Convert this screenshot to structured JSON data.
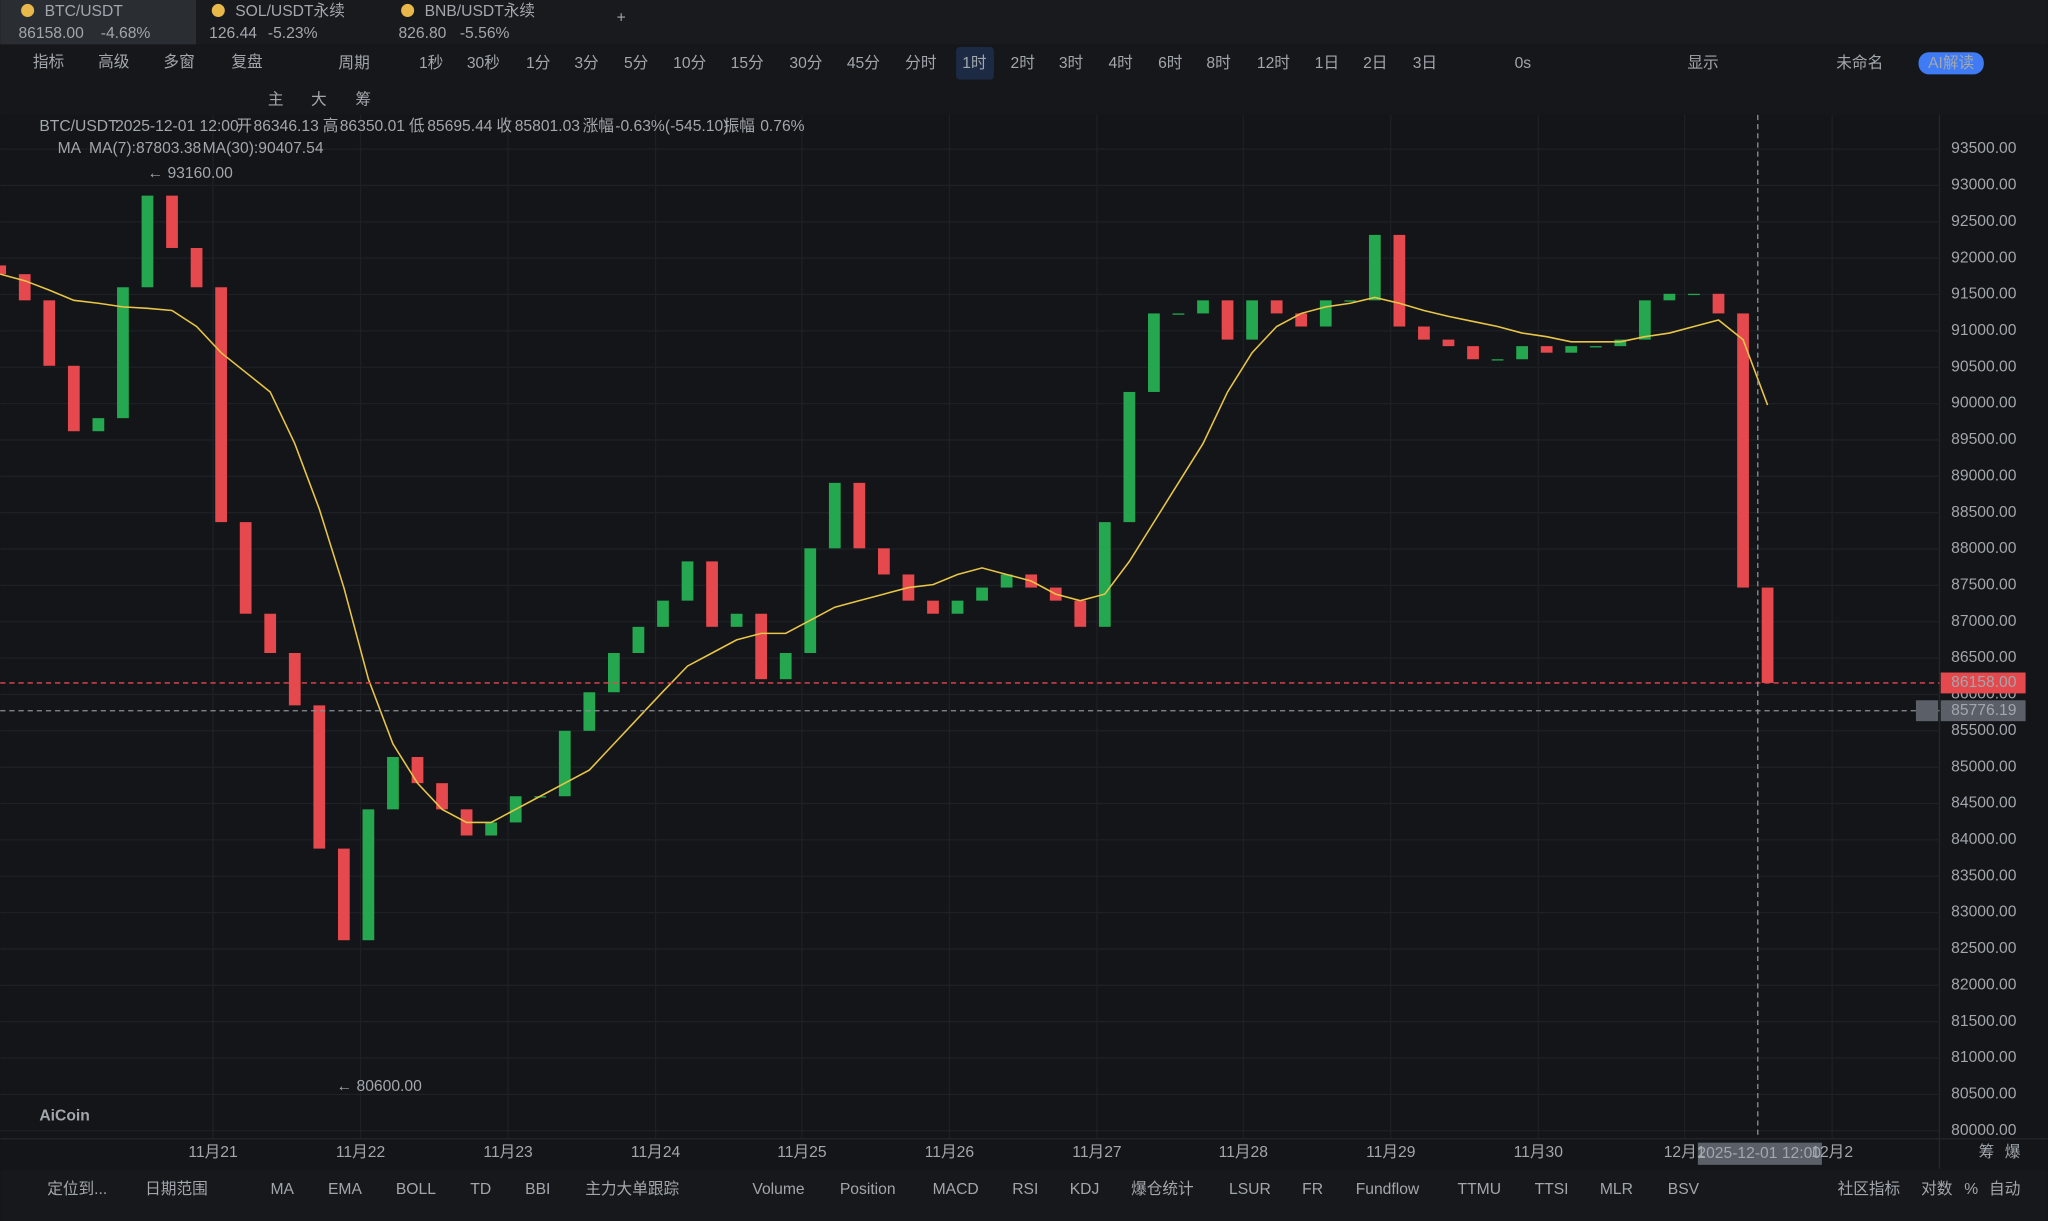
{
  "tabs": [
    {
      "symbol": "BTC/USDT",
      "price": "86158.00",
      "change": "-4.68%"
    },
    {
      "symbol": "SOL/USDT永续",
      "price": "126.44",
      "change": "-5.23%"
    },
    {
      "symbol": "BNB/USDT永续",
      "price": "826.80",
      "change": "-5.56%"
    }
  ],
  "toolbar": {
    "items": [
      "指标",
      "高级",
      "多窗",
      "复盘"
    ],
    "period_label": "周期",
    "periods": [
      "1秒",
      "30秒",
      "1分",
      "3分",
      "5分",
      "10分",
      "15分",
      "30分",
      "45分",
      "分时",
      "1时",
      "2时",
      "3时",
      "4时",
      "6时",
      "8时",
      "12时",
      "1日",
      "2日",
      "3日"
    ],
    "right": [
      "0s",
      "显示",
      "未命名"
    ],
    "ai": "AI解读"
  },
  "drawing_tools": [
    "主",
    "大",
    "筹"
  ],
  "info": {
    "items": [
      "BTC/USDT",
      "2025-12-01 12:00",
      "开",
      "86346.13",
      "高",
      "86350.01",
      "低",
      "85695.44",
      "收",
      "85801.03",
      "涨幅",
      "-0.63%(-545.10)",
      "振幅",
      "0.76%"
    ],
    "ma_label": "MA",
    "ma7": "MA(7):87803.38",
    "ma30": "MA(30):90407.54"
  },
  "watermark": "AiCoin",
  "chart_data": {
    "type": "candlestick",
    "open": [
      91900,
      91780,
      91420,
      90520,
      89620,
      89800,
      91600,
      92860,
      92140,
      91600,
      88370,
      87110,
      86570,
      85850,
      83880,
      82620,
      84420,
      85140,
      84780,
      84420,
      84060,
      84240,
      84600,
      84600,
      85500,
      86030,
      86570,
      86930,
      87290,
      87830,
      86930,
      87110,
      86210,
      86570,
      88010,
      88910,
      88010,
      87650,
      87290,
      87110,
      87290,
      87470,
      87650,
      87470,
      87290,
      86930,
      88370,
      90160,
      91240,
      91240,
      91420,
      90880,
      91420,
      91240,
      91060,
      91420,
      91420,
      92320,
      91060,
      90880,
      90790,
      90610,
      90610,
      90790,
      90700,
      90790,
      90790,
      90880,
      91420,
      91510,
      91510,
      91240,
      87470
    ],
    "close": [
      91780,
      91420,
      90520,
      89620,
      89800,
      91600,
      92860,
      92140,
      91600,
      88370,
      87110,
      86570,
      85850,
      83880,
      82620,
      84420,
      85140,
      84780,
      84420,
      84060,
      84240,
      84600,
      84600,
      85500,
      86030,
      86570,
      86930,
      87290,
      87830,
      86930,
      87110,
      86210,
      86570,
      88010,
      88910,
      88010,
      87650,
      87290,
      87110,
      87290,
      87470,
      87650,
      87470,
      87290,
      86930,
      88370,
      90160,
      91240,
      91240,
      91420,
      90880,
      91420,
      91240,
      91060,
      91420,
      91420,
      92320,
      91060,
      90880,
      90790,
      90610,
      90610,
      90790,
      90700,
      90790,
      90790,
      90880,
      91420,
      91510,
      91510,
      91240,
      87470,
      86158
    ],
    "ma30": [
      91780,
      91690,
      91560,
      91420,
      91380,
      91330,
      91310,
      91280,
      91060,
      90700,
      90430,
      90160,
      89450,
      88550,
      87470,
      86210,
      85320,
      84780,
      84420,
      84240,
      84240,
      84420,
      84600,
      84780,
      84960,
      85320,
      85680,
      86040,
      86390,
      86570,
      86750,
      86840,
      86840,
      87020,
      87200,
      87290,
      87380,
      87470,
      87510,
      87650,
      87740,
      87650,
      87560,
      87380,
      87290,
      87380,
      87830,
      88370,
      88910,
      89450,
      90160,
      90700,
      91060,
      91240,
      91330,
      91380,
      91460,
      91380,
      91280,
      91200,
      91130,
      91060,
      90970,
      90920,
      90850,
      90850,
      90850,
      90920,
      90970,
      91060,
      91150,
      90880,
      89980
    ],
    "up_color": "#25a750",
    "down_color": "#e5484d",
    "ma30_color": "#e8c547",
    "grid": true,
    "ylim": [
      79890,
      93970
    ],
    "yticks": [
      {
        "value": 80000,
        "label": "80000.00"
      },
      {
        "value": 80500,
        "label": "80500.00"
      },
      {
        "value": 81000,
        "label": "81000.00"
      },
      {
        "value": 81500,
        "label": "81500.00"
      },
      {
        "value": 82000,
        "label": "82000.00"
      },
      {
        "value": 82500,
        "label": "82500.00"
      },
      {
        "value": 83000,
        "label": "83000.00"
      },
      {
        "value": 83500,
        "label": "83500.00"
      },
      {
        "value": 84000,
        "label": "84000.00"
      },
      {
        "value": 84500,
        "label": "84500.00"
      },
      {
        "value": 85000,
        "label": "85000.00"
      },
      {
        "value": 85500,
        "label": "85500.00"
      },
      {
        "value": 86000,
        "label": "86000.00"
      },
      {
        "value": 86500,
        "label": "86500.00"
      },
      {
        "value": 87000,
        "label": "87000.00"
      },
      {
        "value": 87500,
        "label": "87500.00"
      },
      {
        "value": 88000,
        "label": "88000.00"
      },
      {
        "value": 88500,
        "label": "88500.00"
      },
      {
        "value": 89000,
        "label": "89000.00"
      },
      {
        "value": 89500,
        "label": "89500.00"
      },
      {
        "value": 90000,
        "label": "90000.00"
      },
      {
        "value": 90500,
        "label": "90500.00"
      },
      {
        "value": 91000,
        "label": "91000.00"
      },
      {
        "value": 91500,
        "label": "91500.00"
      },
      {
        "value": 92000,
        "label": "92000.00"
      },
      {
        "value": 92500,
        "label": "92500.00"
      },
      {
        "value": 93000,
        "label": "93000.00"
      },
      {
        "value": 93500,
        "label": "93500.00"
      }
    ],
    "xlim": [
      0,
      79
    ],
    "xticks": [
      {
        "value": 8.67,
        "label": "11月21"
      },
      {
        "value": 14.68,
        "label": "11月22"
      },
      {
        "value": 20.69,
        "label": "11月23"
      },
      {
        "value": 26.7,
        "label": "11月24"
      },
      {
        "value": 32.66,
        "label": "11月25"
      },
      {
        "value": 38.67,
        "label": "11月26"
      },
      {
        "value": 44.68,
        "label": "11月27"
      },
      {
        "value": 50.64,
        "label": "11月28"
      },
      {
        "value": 56.65,
        "label": "11月29"
      },
      {
        "value": 62.66,
        "label": "11月30"
      },
      {
        "value": 68.62,
        "label": "12月1"
      },
      {
        "value": 74.63,
        "label": "12月2"
      }
    ],
    "annotations": [
      {
        "x": 6,
        "value": 93160,
        "label": "← 93160.00"
      },
      {
        "x": 13.7,
        "value": 80600,
        "label": "← 80600.00"
      }
    ],
    "last_price": {
      "value": 86158,
      "label": "86158.00"
    },
    "crosshair": {
      "x": 71.6,
      "time": "2025-12-01 12:00",
      "price": {
        "value": 85776.19,
        "label": "85776.19"
      }
    }
  },
  "axis_corner": [
    "筹",
    "爆"
  ],
  "bottom_bar": {
    "locate": "定位到...",
    "date_range": "日期范围",
    "indicators": [
      "MA",
      "EMA",
      "BOLL",
      "TD",
      "BBI",
      "主力大单跟踪",
      "Volume",
      "Position",
      "MACD",
      "RSI",
      "KDJ",
      "爆仓统计",
      "LSUR",
      "FR",
      "Fundflow",
      "TTMU",
      "TTSI",
      "MLR",
      "BSV"
    ],
    "right": [
      "社区指标",
      "对数",
      "%",
      "自动"
    ]
  }
}
